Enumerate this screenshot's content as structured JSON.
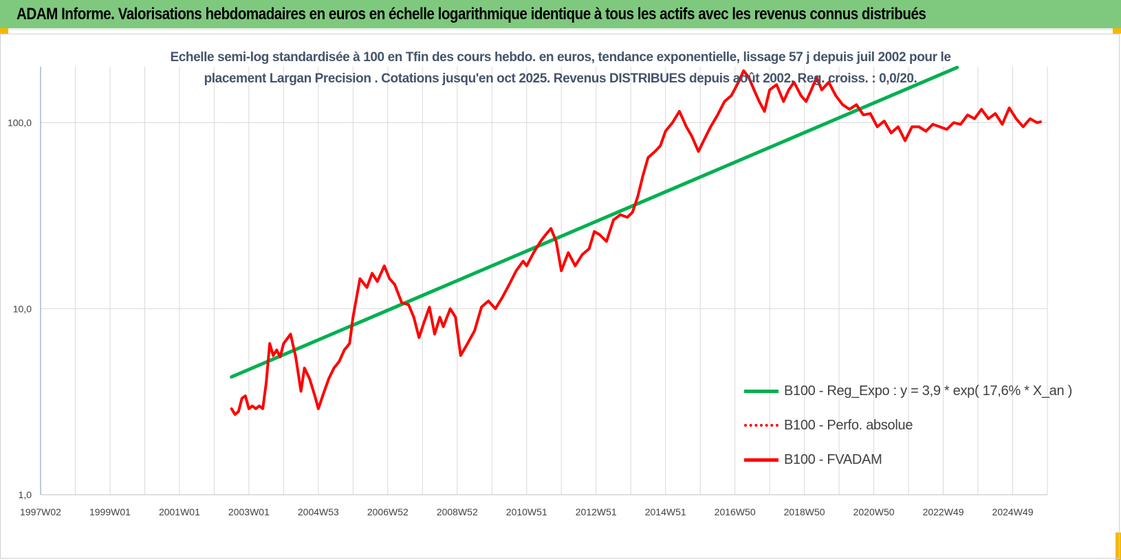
{
  "header": {
    "title": "ADAM Informe. Valorisations hebdomadaires en euros en échelle logarithmique identique à tous les actifs avec les revenus connus distribués"
  },
  "colors": {
    "header_bg": "#7fc97f",
    "regression": "#00b050",
    "fvadam": "#ff0000",
    "perfo": "#ff0000",
    "grid": "#d9d9d9",
    "corner": "#f5b800"
  },
  "chart_data": {
    "type": "line",
    "subtitle_lines": [
      "Echelle semi-log standardisée à 100 en Tfin des cours hebdo. en euros, tendance exponentielle, lissage 57 j depuis juil 2002 pour le",
      "placement Largan Precision . Cotations jusqu'en oct 2025. Revenus DISTRIBUES depuis août 2002. Reg. croiss. : 0,0/20."
    ],
    "y_scale": "log",
    "ylim": [
      1,
      200
    ],
    "y_ticks": [
      "1,0",
      "10,0",
      "100,0"
    ],
    "y_tick_values": [
      1,
      10,
      100
    ],
    "xlim": [
      1997.0,
      2026.0
    ],
    "x_ticks": [
      {
        "label": "1997W02",
        "value": 1997.0
      },
      {
        "label": "1999W01",
        "value": 1999.0
      },
      {
        "label": "2001W01",
        "value": 2001.0
      },
      {
        "label": "2003W01",
        "value": 2003.0
      },
      {
        "label": "2004W53",
        "value": 2005.0
      },
      {
        "label": "2006W52",
        "value": 2007.0
      },
      {
        "label": "2008W52",
        "value": 2009.0
      },
      {
        "label": "2010W51",
        "value": 2011.0
      },
      {
        "label": "2012W51",
        "value": 2013.0
      },
      {
        "label": "2014W51",
        "value": 2015.0
      },
      {
        "label": "2016W50",
        "value": 2017.0
      },
      {
        "label": "2018W50",
        "value": 2019.0
      },
      {
        "label": "2020W50",
        "value": 2021.0
      },
      {
        "label": "2022W49",
        "value": 2023.0
      },
      {
        "label": "2024W49",
        "value": 2025.0
      }
    ],
    "grid": true,
    "legend_position": "bottom-right",
    "legend": [
      {
        "label": "B100 - Reg_Expo : y = 3,9 * exp( 17,6% *  X_an )",
        "style": "solid",
        "color": "#00b050"
      },
      {
        "label": "B100 - Perfo. absolue",
        "style": "dotted",
        "color": "#ff0000"
      },
      {
        "label": "B100 - FVADAM",
        "style": "solid",
        "color": "#ff0000"
      }
    ],
    "series": [
      {
        "name": "B100 - Reg_Expo",
        "color": "#00b050",
        "x": [
          2002.5,
          2023.4
        ],
        "y": [
          4.3,
          198
        ]
      },
      {
        "name": "B100 - FVADAM",
        "color": "#ff0000",
        "x": [
          2002.5,
          2002.6,
          2002.7,
          2002.8,
          2002.9,
          2003.0,
          2003.1,
          2003.2,
          2003.3,
          2003.4,
          2003.5,
          2003.6,
          2003.7,
          2003.8,
          2003.9,
          2004.0,
          2004.2,
          2004.35,
          2004.5,
          2004.6,
          2004.75,
          2004.9,
          2005.0,
          2005.15,
          2005.3,
          2005.45,
          2005.6,
          2005.75,
          2005.9,
          2006.0,
          2006.2,
          2006.4,
          2006.55,
          2006.7,
          2006.9,
          2007.05,
          2007.2,
          2007.4,
          2007.6,
          2007.75,
          2007.9,
          2008.05,
          2008.2,
          2008.35,
          2008.5,
          2008.6,
          2008.8,
          2008.95,
          2009.1,
          2009.3,
          2009.5,
          2009.7,
          2009.9,
          2010.1,
          2010.3,
          2010.5,
          2010.7,
          2010.9,
          2011.0,
          2011.2,
          2011.4,
          2011.55,
          2011.7,
          2011.85,
          2012.0,
          2012.2,
          2012.4,
          2012.6,
          2012.8,
          2012.95,
          2013.1,
          2013.3,
          2013.5,
          2013.7,
          2013.9,
          2014.05,
          2014.2,
          2014.35,
          2014.5,
          2014.7,
          2014.85,
          2015.0,
          2015.2,
          2015.4,
          2015.6,
          2015.75,
          2015.95,
          2016.1,
          2016.3,
          2016.5,
          2016.7,
          2016.9,
          2017.1,
          2017.25,
          2017.4,
          2017.55,
          2017.7,
          2017.85,
          2018.0,
          2018.2,
          2018.4,
          2018.55,
          2018.7,
          2018.9,
          2019.05,
          2019.2,
          2019.35,
          2019.5,
          2019.7,
          2019.9,
          2020.1,
          2020.3,
          2020.5,
          2020.7,
          2020.9,
          2021.1,
          2021.3,
          2021.5,
          2021.7,
          2021.9,
          2022.1,
          2022.3,
          2022.5,
          2022.7,
          2022.9,
          2023.1,
          2023.3,
          2023.5,
          2023.7,
          2023.9,
          2024.1,
          2024.3,
          2024.5,
          2024.7,
          2024.9,
          2025.1,
          2025.3,
          2025.5,
          2025.7,
          2025.8
        ],
        "y": [
          2.9,
          2.7,
          2.8,
          3.3,
          3.4,
          2.9,
          3.0,
          2.9,
          3.0,
          2.9,
          4.0,
          6.5,
          5.6,
          6.0,
          5.5,
          6.5,
          7.3,
          5.5,
          3.6,
          4.8,
          4.2,
          3.4,
          2.9,
          3.5,
          4.2,
          4.8,
          5.2,
          6.0,
          6.5,
          9.0,
          14.5,
          13.0,
          15.5,
          14.0,
          17.0,
          14.5,
          13.5,
          10.8,
          10.5,
          9.0,
          7.0,
          8.5,
          10.2,
          7.3,
          9.0,
          8.0,
          10.0,
          9.0,
          5.6,
          6.5,
          7.6,
          10.2,
          11.0,
          10.0,
          11.5,
          13.5,
          16.0,
          18.0,
          17.0,
          20.0,
          23.0,
          25.0,
          27.0,
          23.0,
          16.0,
          20.0,
          17.0,
          19.5,
          21.0,
          26.0,
          25.0,
          23.0,
          30.0,
          32.0,
          31.0,
          33.0,
          40.0,
          52.0,
          65.0,
          70.0,
          75.0,
          90.0,
          100.0,
          115.0,
          95.0,
          85.0,
          70.0,
          80.0,
          95.0,
          110.0,
          130.0,
          140.0,
          165.0,
          190.0,
          175.0,
          150.0,
          130.0,
          115.0,
          150.0,
          160.0,
          130.0,
          150.0,
          165.0,
          140.0,
          130.0,
          150.0,
          175.0,
          150.0,
          165.0,
          140.0,
          125.0,
          118.0,
          125.0,
          110.0,
          112.0,
          95.0,
          102.0,
          88.0,
          95.0,
          80.0,
          95.0,
          95.0,
          90.0,
          98.0,
          95.0,
          92.0,
          100.0,
          98.0,
          110.0,
          105.0,
          118.0,
          105.0,
          112.0,
          98.0,
          120.0,
          105.0,
          95.0,
          105.0,
          100.0,
          101.0
        ]
      }
    ]
  }
}
